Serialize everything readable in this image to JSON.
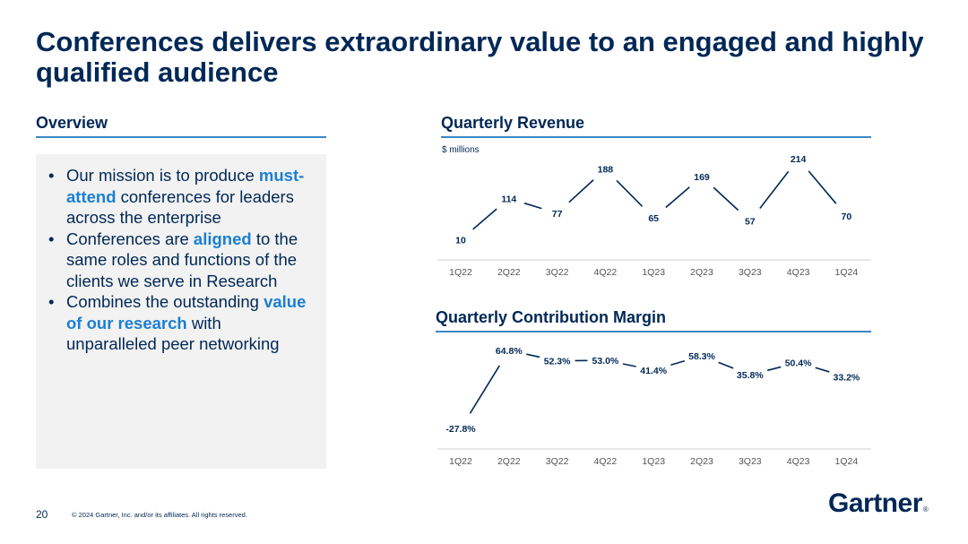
{
  "title": "Conferences delivers extraordinary value to an engaged and highly qualified audience",
  "overview": {
    "heading": "Overview",
    "bullets": [
      {
        "parts": [
          {
            "text": "Our mission is to produce ",
            "hl": false
          },
          {
            "text": "must-attend",
            "hl": true
          },
          {
            "text": " conferences for leaders across the enterprise",
            "hl": false
          }
        ]
      },
      {
        "parts": [
          {
            "text": "Conferences are ",
            "hl": false
          },
          {
            "text": "aligned",
            "hl": true
          },
          {
            "text": " to the same roles and functions of the clients we serve in Research",
            "hl": false
          }
        ]
      },
      {
        "parts": [
          {
            "text": "Combines the outstanding ",
            "hl": false
          },
          {
            "text": "value of our research",
            "hl": true
          },
          {
            "text": " with unparalleled peer networking",
            "hl": false
          }
        ]
      }
    ]
  },
  "chart_data": [
    {
      "type": "line",
      "title": "Quarterly Revenue",
      "units_label": "$ millions",
      "categories": [
        "1Q22",
        "2Q22",
        "3Q22",
        "4Q22",
        "1Q23",
        "2Q23",
        "3Q23",
        "4Q23",
        "1Q24"
      ],
      "values": [
        10,
        114,
        77,
        188,
        65,
        169,
        57,
        214,
        70
      ],
      "labels": [
        "10",
        "114",
        "77",
        "188",
        "65",
        "169",
        "57",
        "214",
        "70"
      ],
      "ylim": [
        0,
        230
      ],
      "grid": false,
      "legend": "none",
      "color": "#002856"
    },
    {
      "type": "line",
      "title": "Quarterly Contribution Margin",
      "categories": [
        "1Q22",
        "2Q22",
        "3Q22",
        "4Q22",
        "1Q23",
        "2Q23",
        "3Q23",
        "4Q23",
        "1Q24"
      ],
      "values": [
        -27.8,
        64.8,
        52.3,
        53.0,
        41.4,
        58.3,
        35.8,
        50.4,
        33.2
      ],
      "labels": [
        "-27.8%",
        "64.8%",
        "52.3%",
        "53.0%",
        "41.4%",
        "58.3%",
        "35.8%",
        "50.4%",
        "33.2%"
      ],
      "ylim": [
        -35,
        70
      ],
      "grid": false,
      "legend": "none",
      "color": "#002856"
    }
  ],
  "footer": {
    "page_number": "20",
    "copyright": "© 2024 Gartner, Inc. and/or its affiliates. All rights reserved."
  },
  "logo": {
    "text": "Gartner",
    "mark": "®"
  }
}
